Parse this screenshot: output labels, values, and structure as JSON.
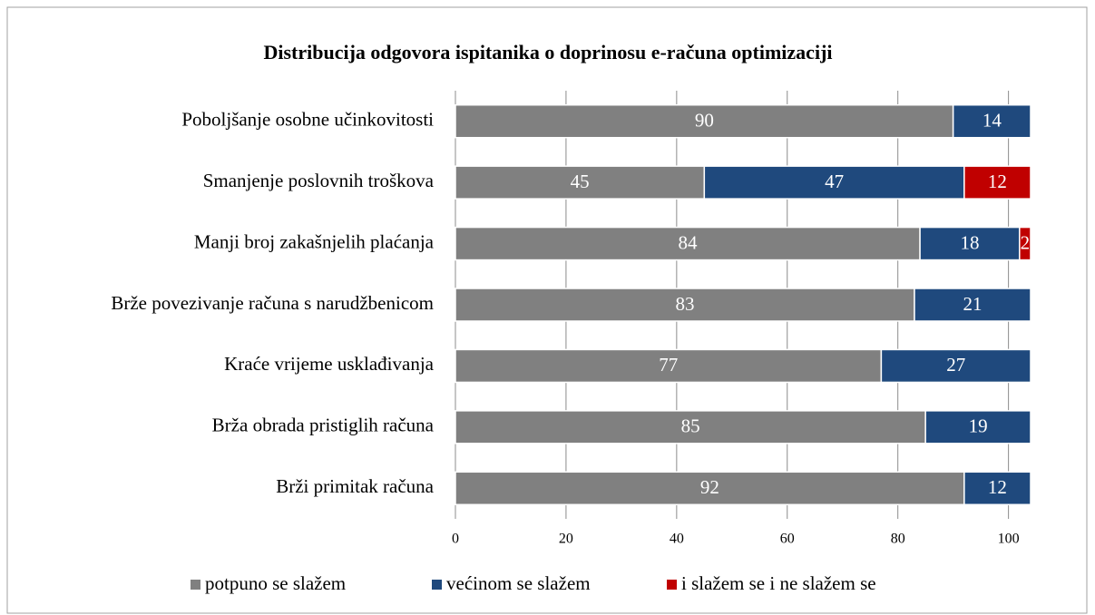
{
  "chart_data": {
    "type": "stacked_barh",
    "title": "Distribucija odgovora ispitanika o doprinosu e-računa optimizaciji",
    "categories": [
      "Poboljšanje osobne učinkovitosti",
      "Smanjenje poslovnih troškova",
      "Manji broj zakašnjelih plaćanja",
      "Brže povezivanje računa s narudžbenicom",
      "Kraće vrijeme usklađivanja",
      "Brža obrada pristiglih računa",
      "Brži primitak računa"
    ],
    "series": [
      {
        "name": "potpuno se slažem",
        "color": "#808080",
        "values": [
          90,
          45,
          84,
          83,
          77,
          85,
          92
        ]
      },
      {
        "name": "većinom se slažem",
        "color": "#1f497d",
        "values": [
          14,
          47,
          18,
          21,
          27,
          19,
          12
        ]
      },
      {
        "name": "i slažem se i ne slažem se",
        "color": "#c00000",
        "values": [
          null,
          12,
          2,
          null,
          null,
          null,
          null
        ]
      }
    ],
    "xlim": [
      0,
      104
    ],
    "xticks": [
      0,
      20,
      40,
      60,
      80,
      100
    ],
    "grid": true,
    "legend": "bottom"
  }
}
